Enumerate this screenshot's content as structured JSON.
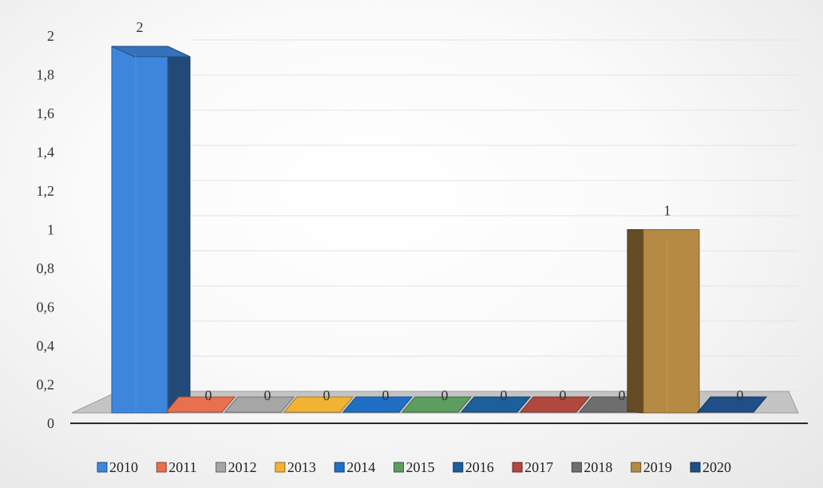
{
  "chart_data": {
    "type": "bar",
    "categories": [
      "2010",
      "2011",
      "2012",
      "2013",
      "2014",
      "2015",
      "2016",
      "2017",
      "2018",
      "2019",
      "2020"
    ],
    "series": [
      {
        "name": "2010",
        "value": 2,
        "color": "#3d86dc"
      },
      {
        "name": "2011",
        "value": 0,
        "color": "#e8704e"
      },
      {
        "name": "2012",
        "value": 0,
        "color": "#a6a6a6"
      },
      {
        "name": "2013",
        "value": 0,
        "color": "#f2b233"
      },
      {
        "name": "2014",
        "value": 0,
        "color": "#1f6fc5"
      },
      {
        "name": "2015",
        "value": 0,
        "color": "#5b9e5f"
      },
      {
        "name": "2016",
        "value": 0,
        "color": "#1d5e9c"
      },
      {
        "name": "2017",
        "value": 0,
        "color": "#b0483e"
      },
      {
        "name": "2018",
        "value": 0,
        "color": "#6e6e6e"
      },
      {
        "name": "2019",
        "value": 1,
        "color": "#b58a45"
      },
      {
        "name": "2020",
        "value": 0,
        "color": "#1f4f86"
      }
    ],
    "yticks": [
      "0",
      "0,2",
      "0,4",
      "0,6",
      "0,8",
      "1",
      "1,2",
      "1,4",
      "1,6",
      "1,8",
      "2"
    ],
    "data_labels": [
      "2",
      "0",
      "0",
      "0",
      "0",
      "0",
      "0",
      "0",
      "0",
      "1",
      "0"
    ],
    "ylim": [
      0,
      2
    ],
    "grid": true,
    "legend_position": "bottom",
    "style": "3d-column"
  }
}
